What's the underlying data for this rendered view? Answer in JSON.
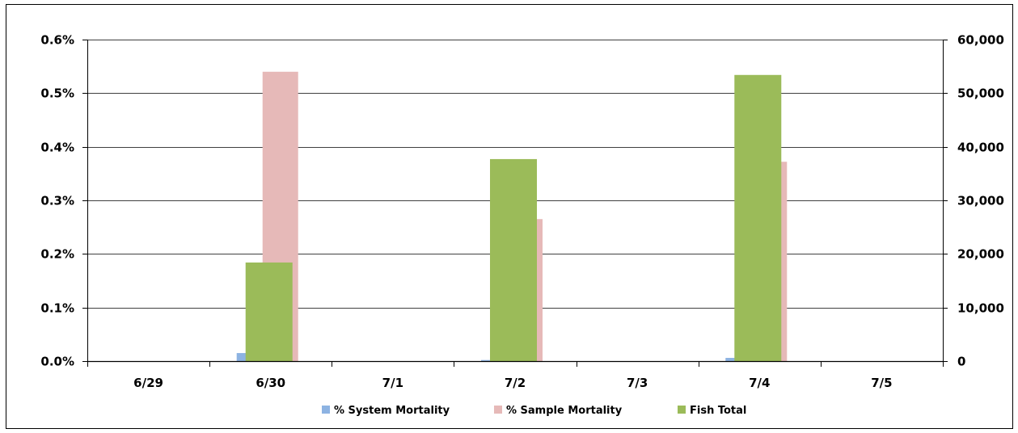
{
  "chart_data": {
    "type": "bar",
    "categories": [
      "6/29",
      "6/30",
      "7/1",
      "7/2",
      "7/3",
      "7/4",
      "7/5"
    ],
    "series": [
      {
        "name": "% System Mortality",
        "axis": "left",
        "color": "#8db3e2",
        "values": [
          0,
          0.00015,
          0,
          2e-05,
          0,
          6e-05,
          0
        ]
      },
      {
        "name": "% Sample Mortality",
        "axis": "left",
        "color": "#e6b9b8",
        "values": [
          0,
          0.0054,
          0,
          0.00265,
          0,
          0.00372,
          0
        ]
      },
      {
        "name": "Fish Total",
        "axis": "right",
        "color": "#9bbb59",
        "values": [
          0,
          18400,
          0,
          37700,
          0,
          53400,
          0
        ]
      }
    ],
    "y_left": {
      "lim": [
        0,
        0.006
      ],
      "ticks": [
        0,
        0.001,
        0.002,
        0.003,
        0.004,
        0.005,
        0.006
      ],
      "tick_labels": [
        "0.0%",
        "0.1%",
        "0.2%",
        "0.3%",
        "0.4%",
        "0.5%",
        "0.6%"
      ]
    },
    "y_right": {
      "lim": [
        0,
        60000
      ],
      "ticks": [
        0,
        10000,
        20000,
        30000,
        40000,
        50000,
        60000
      ],
      "tick_labels": [
        "0",
        "10,000",
        "20,000",
        "30,000",
        "40,000",
        "50,000",
        "60,000"
      ]
    },
    "grid": true,
    "legend_position": "bottom",
    "title": "",
    "xlabel": "",
    "ylabel": ""
  }
}
